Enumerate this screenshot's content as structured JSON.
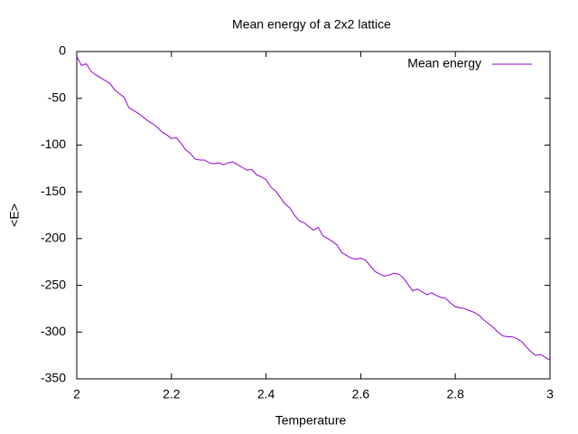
{
  "chart_data": {
    "type": "line",
    "title": "Mean energy of a 2x2 lattice",
    "x_label": "Temperature",
    "y_label": "<E>",
    "x": [
      2.0,
      2.01,
      2.02,
      2.03,
      2.04,
      2.05,
      2.06,
      2.07,
      2.08,
      2.09,
      2.1,
      2.11,
      2.12,
      2.13,
      2.14,
      2.15,
      2.16,
      2.17,
      2.18,
      2.19,
      2.2,
      2.21,
      2.22,
      2.23,
      2.24,
      2.25,
      2.26,
      2.27,
      2.28,
      2.29,
      2.3,
      2.31,
      2.32,
      2.33,
      2.34,
      2.35,
      2.36,
      2.37,
      2.38,
      2.39,
      2.4,
      2.41,
      2.42,
      2.43,
      2.44,
      2.45,
      2.46,
      2.47,
      2.48,
      2.49,
      2.5,
      2.51,
      2.52,
      2.53,
      2.54,
      2.55,
      2.56,
      2.57,
      2.58,
      2.59,
      2.6,
      2.61,
      2.62,
      2.63,
      2.64,
      2.65,
      2.66,
      2.67,
      2.68,
      2.69,
      2.7,
      2.71,
      2.72,
      2.73,
      2.74,
      2.75,
      2.76,
      2.77,
      2.78,
      2.79,
      2.8,
      2.81,
      2.82,
      2.83,
      2.84,
      2.85,
      2.86,
      2.87,
      2.88,
      2.89,
      2.9,
      2.91,
      2.92,
      2.93,
      2.94,
      2.95,
      2.96,
      2.97,
      2.98,
      2.99,
      3.0
    ],
    "series": [
      {
        "name": "Mean energy",
        "color": "#9400d3",
        "values": [
          -5,
          -15,
          -13,
          -21,
          -25,
          -28,
          -31,
          -34,
          -41,
          -45,
          -49,
          -60,
          -63,
          -66,
          -70,
          -74,
          -77,
          -81,
          -86,
          -89,
          -93,
          -92,
          -98,
          -105,
          -109,
          -115,
          -116,
          -116,
          -119,
          -120,
          -119,
          -121,
          -119,
          -118,
          -121,
          -124,
          -127,
          -126,
          -132,
          -134,
          -137,
          -145,
          -149,
          -156,
          -163,
          -167,
          -175,
          -181,
          -183,
          -187,
          -191,
          -188,
          -197,
          -200,
          -203,
          -207,
          -215,
          -218,
          -221,
          -222,
          -221,
          -223,
          -229,
          -235,
          -238,
          -240,
          -239,
          -237,
          -238,
          -242,
          -249,
          -256,
          -254,
          -257,
          -260,
          -258,
          -261,
          -263,
          -264,
          -269,
          -273,
          -274,
          -275,
          -277,
          -279,
          -282,
          -287,
          -291,
          -295,
          -300,
          -304,
          -305,
          -305,
          -307,
          -310,
          -316,
          -321,
          -325,
          -324,
          -327,
          -330
        ]
      }
    ],
    "xlim": [
      2,
      3
    ],
    "xticks": [
      2,
      2.2,
      2.4,
      2.6,
      2.8,
      3
    ],
    "ylim": [
      -350,
      0
    ],
    "yticks": [
      0,
      -50,
      -100,
      -150,
      -200,
      -250,
      -300,
      -350
    ],
    "legend_position": "top-right"
  }
}
